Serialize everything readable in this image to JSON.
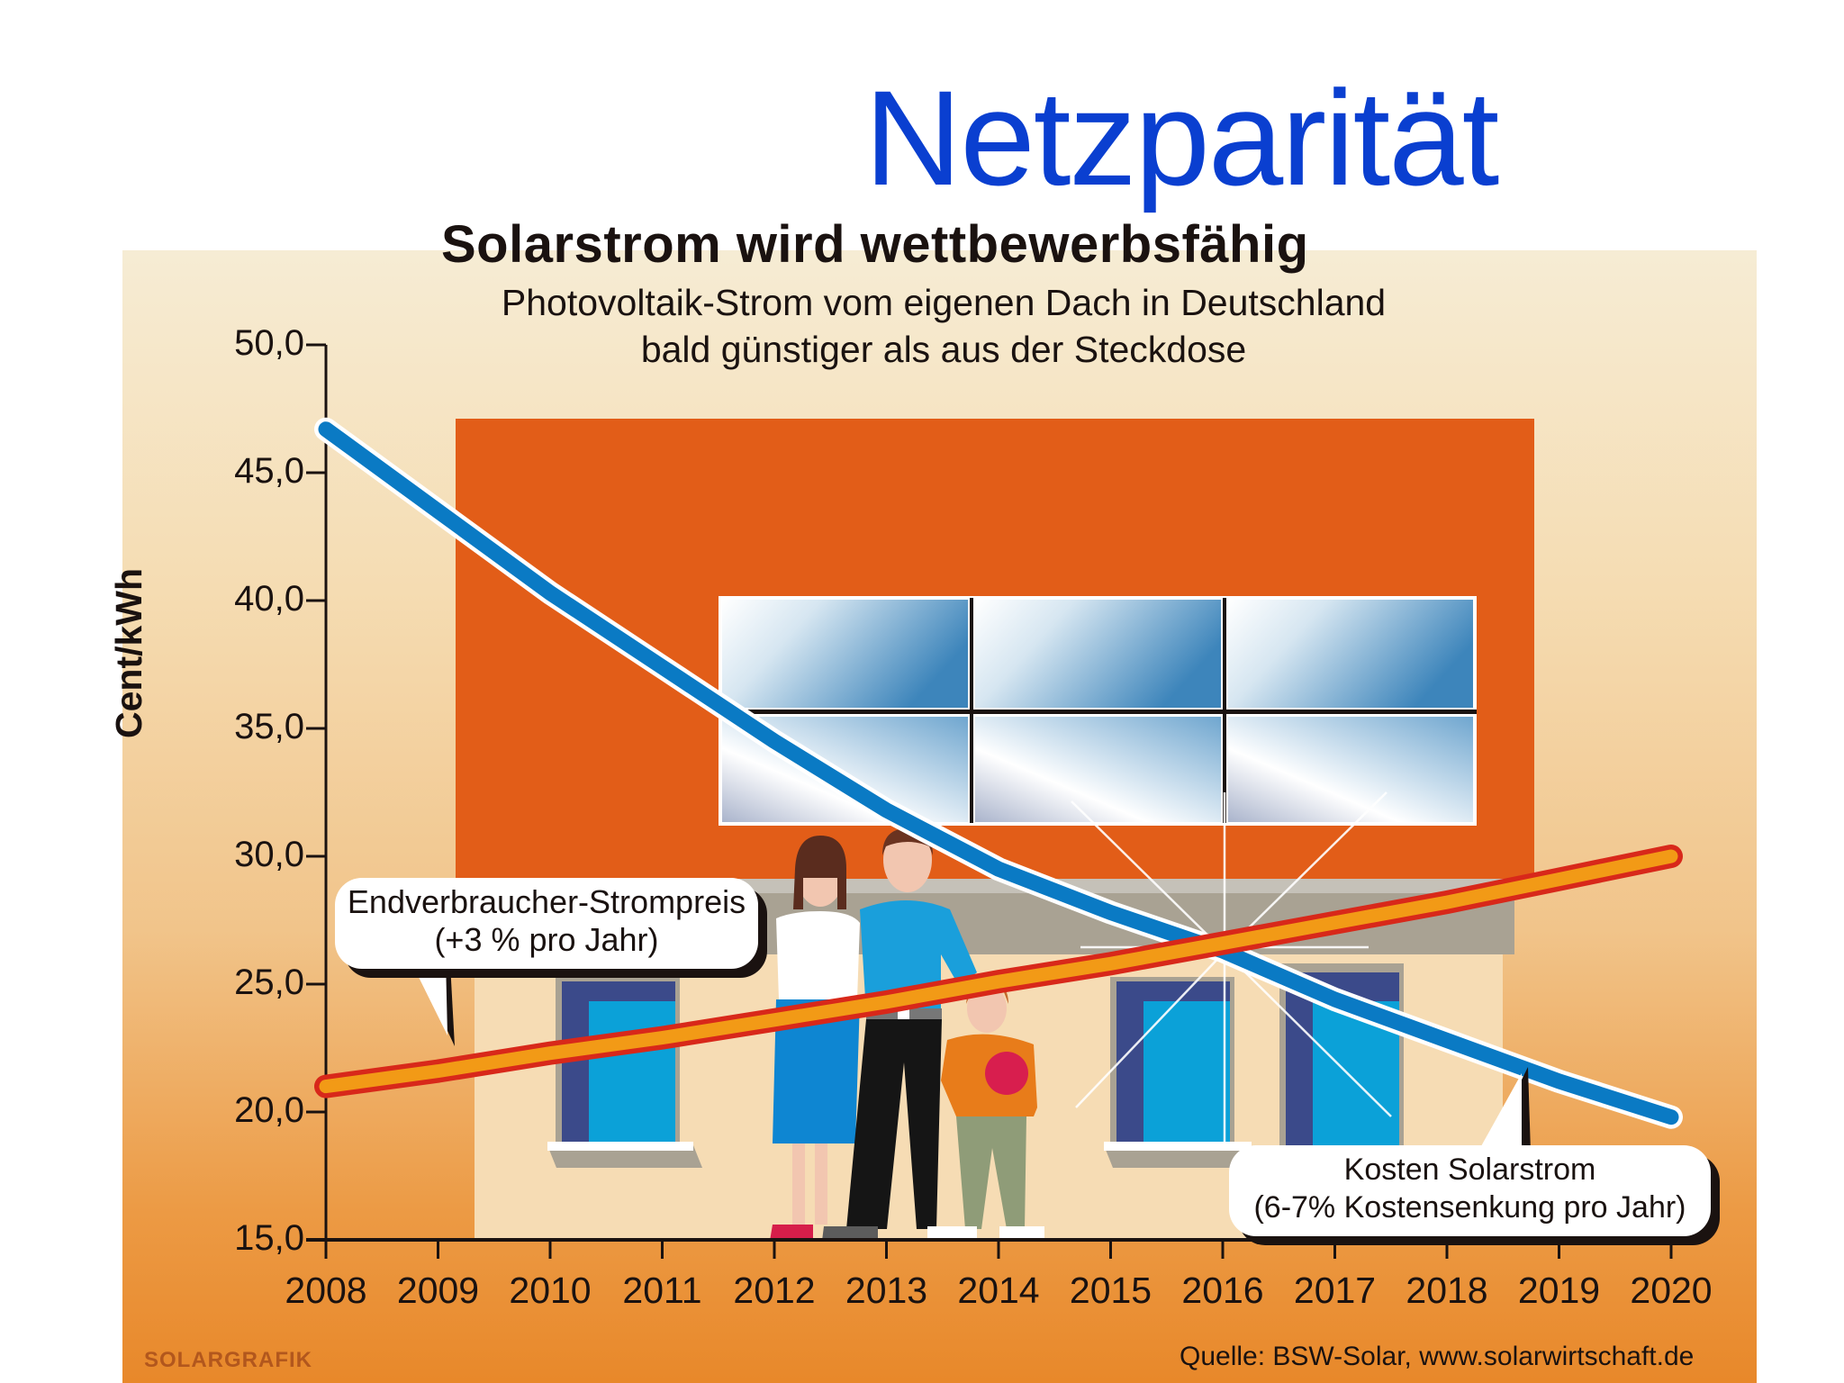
{
  "slide": {
    "title": "Netzparität"
  },
  "graphic": {
    "headline": "Solarstrom wird wettbewerbsfähig",
    "subtitle_line1": "Photovoltaik-Strom vom eigenen Dach in Deutschland",
    "subtitle_line2": "bald günstiger als aus der Steckdose",
    "callout_consumer_line1": "Endverbraucher-Strompreis",
    "callout_consumer_line2": "(+3 % pro Jahr)",
    "callout_solar_line1": "Kosten Solarstrom",
    "callout_solar_line2": "(6-7% Kostensenkung pro Jahr)",
    "credit_left": "SOLARGRAFIK",
    "credit_right": "Quelle: BSW-Solar, www.solarwirtschaft.de",
    "colors": {
      "title_blue": "#0a3fd0",
      "solar_line": "#0a7ac4",
      "consumer_line_fill": "#f29a16",
      "consumer_line_outline": "#d8281a",
      "roof": "#e25d18",
      "wall": "#f6dcb4"
    }
  },
  "chart_data": {
    "type": "line",
    "title": "Solarstrom wird wettbewerbsfähig",
    "subtitle": "Photovoltaik-Strom vom eigenen Dach in Deutschland bald günstiger als aus der Steckdose",
    "xlabel": "",
    "ylabel": "Cent/kWh",
    "ylim": [
      15,
      50
    ],
    "yticks": [
      "15,0",
      "20,0",
      "25,0",
      "30,0",
      "35,0",
      "40,0",
      "45,0",
      "50,0"
    ],
    "x": [
      "2008",
      "2009",
      "2010",
      "2011",
      "2012",
      "2013",
      "2014",
      "2015",
      "2016",
      "2017",
      "2018",
      "2019",
      "2020"
    ],
    "series": [
      {
        "name": "Kosten Solarstrom (6-7% Kostensenkung pro Jahr)",
        "color": "#0a7ac4",
        "values": [
          46.7,
          43.5,
          40.3,
          37.4,
          34.5,
          31.8,
          29.5,
          27.8,
          26.3,
          24.4,
          22.8,
          21.2,
          19.8
        ]
      },
      {
        "name": "Endverbraucher-Strompreis (+3 % pro Jahr)",
        "color": "#f29a16",
        "values": [
          21.0,
          21.6,
          22.3,
          22.9,
          23.6,
          24.3,
          25.1,
          25.8,
          26.6,
          27.4,
          28.2,
          29.1,
          30.0
        ]
      }
    ],
    "annotations": [
      "Netzparität crossover ≈ 2016 at ≈ 26 Cent/kWh"
    ],
    "grid": false,
    "legend_position": "callouts"
  }
}
